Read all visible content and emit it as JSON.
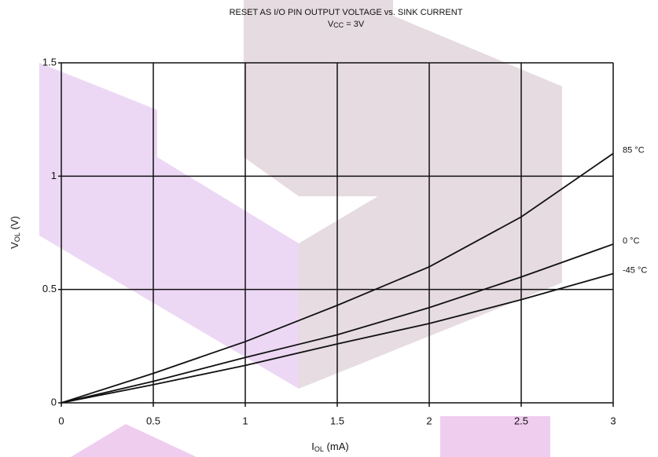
{
  "chart_data": {
    "type": "line",
    "title": "RESET AS I/O PIN OUTPUT VOLTAGE vs. SINK CURRENT",
    "subtitle": [
      "V",
      "CC",
      " = 3V"
    ],
    "x_label": [
      "I",
      "OL",
      " (mA)"
    ],
    "y_label": [
      "V",
      "OL",
      " (V)"
    ],
    "x": [
      0,
      0.5,
      1,
      1.5,
      2,
      2.5,
      3
    ],
    "series": [
      {
        "name": "85 °C",
        "color": "#111111",
        "values": [
          0,
          0.13,
          0.27,
          0.43,
          0.6,
          0.82,
          1.1
        ]
      },
      {
        "name": "0 °C",
        "color": "#111111",
        "values": [
          0,
          0.095,
          0.2,
          0.3,
          0.42,
          0.555,
          0.7
        ]
      },
      {
        "name": "-45 °C",
        "color": "#111111",
        "values": [
          0,
          0.08,
          0.165,
          0.26,
          0.35,
          0.455,
          0.57
        ]
      }
    ],
    "xlim": [
      0,
      3
    ],
    "xticks": [
      0,
      0.5,
      1,
      1.5,
      2,
      2.5,
      3
    ],
    "ylim": [
      0,
      1.5
    ],
    "yticks": [
      0,
      0.5,
      1,
      1.5
    ],
    "grid": true
  }
}
